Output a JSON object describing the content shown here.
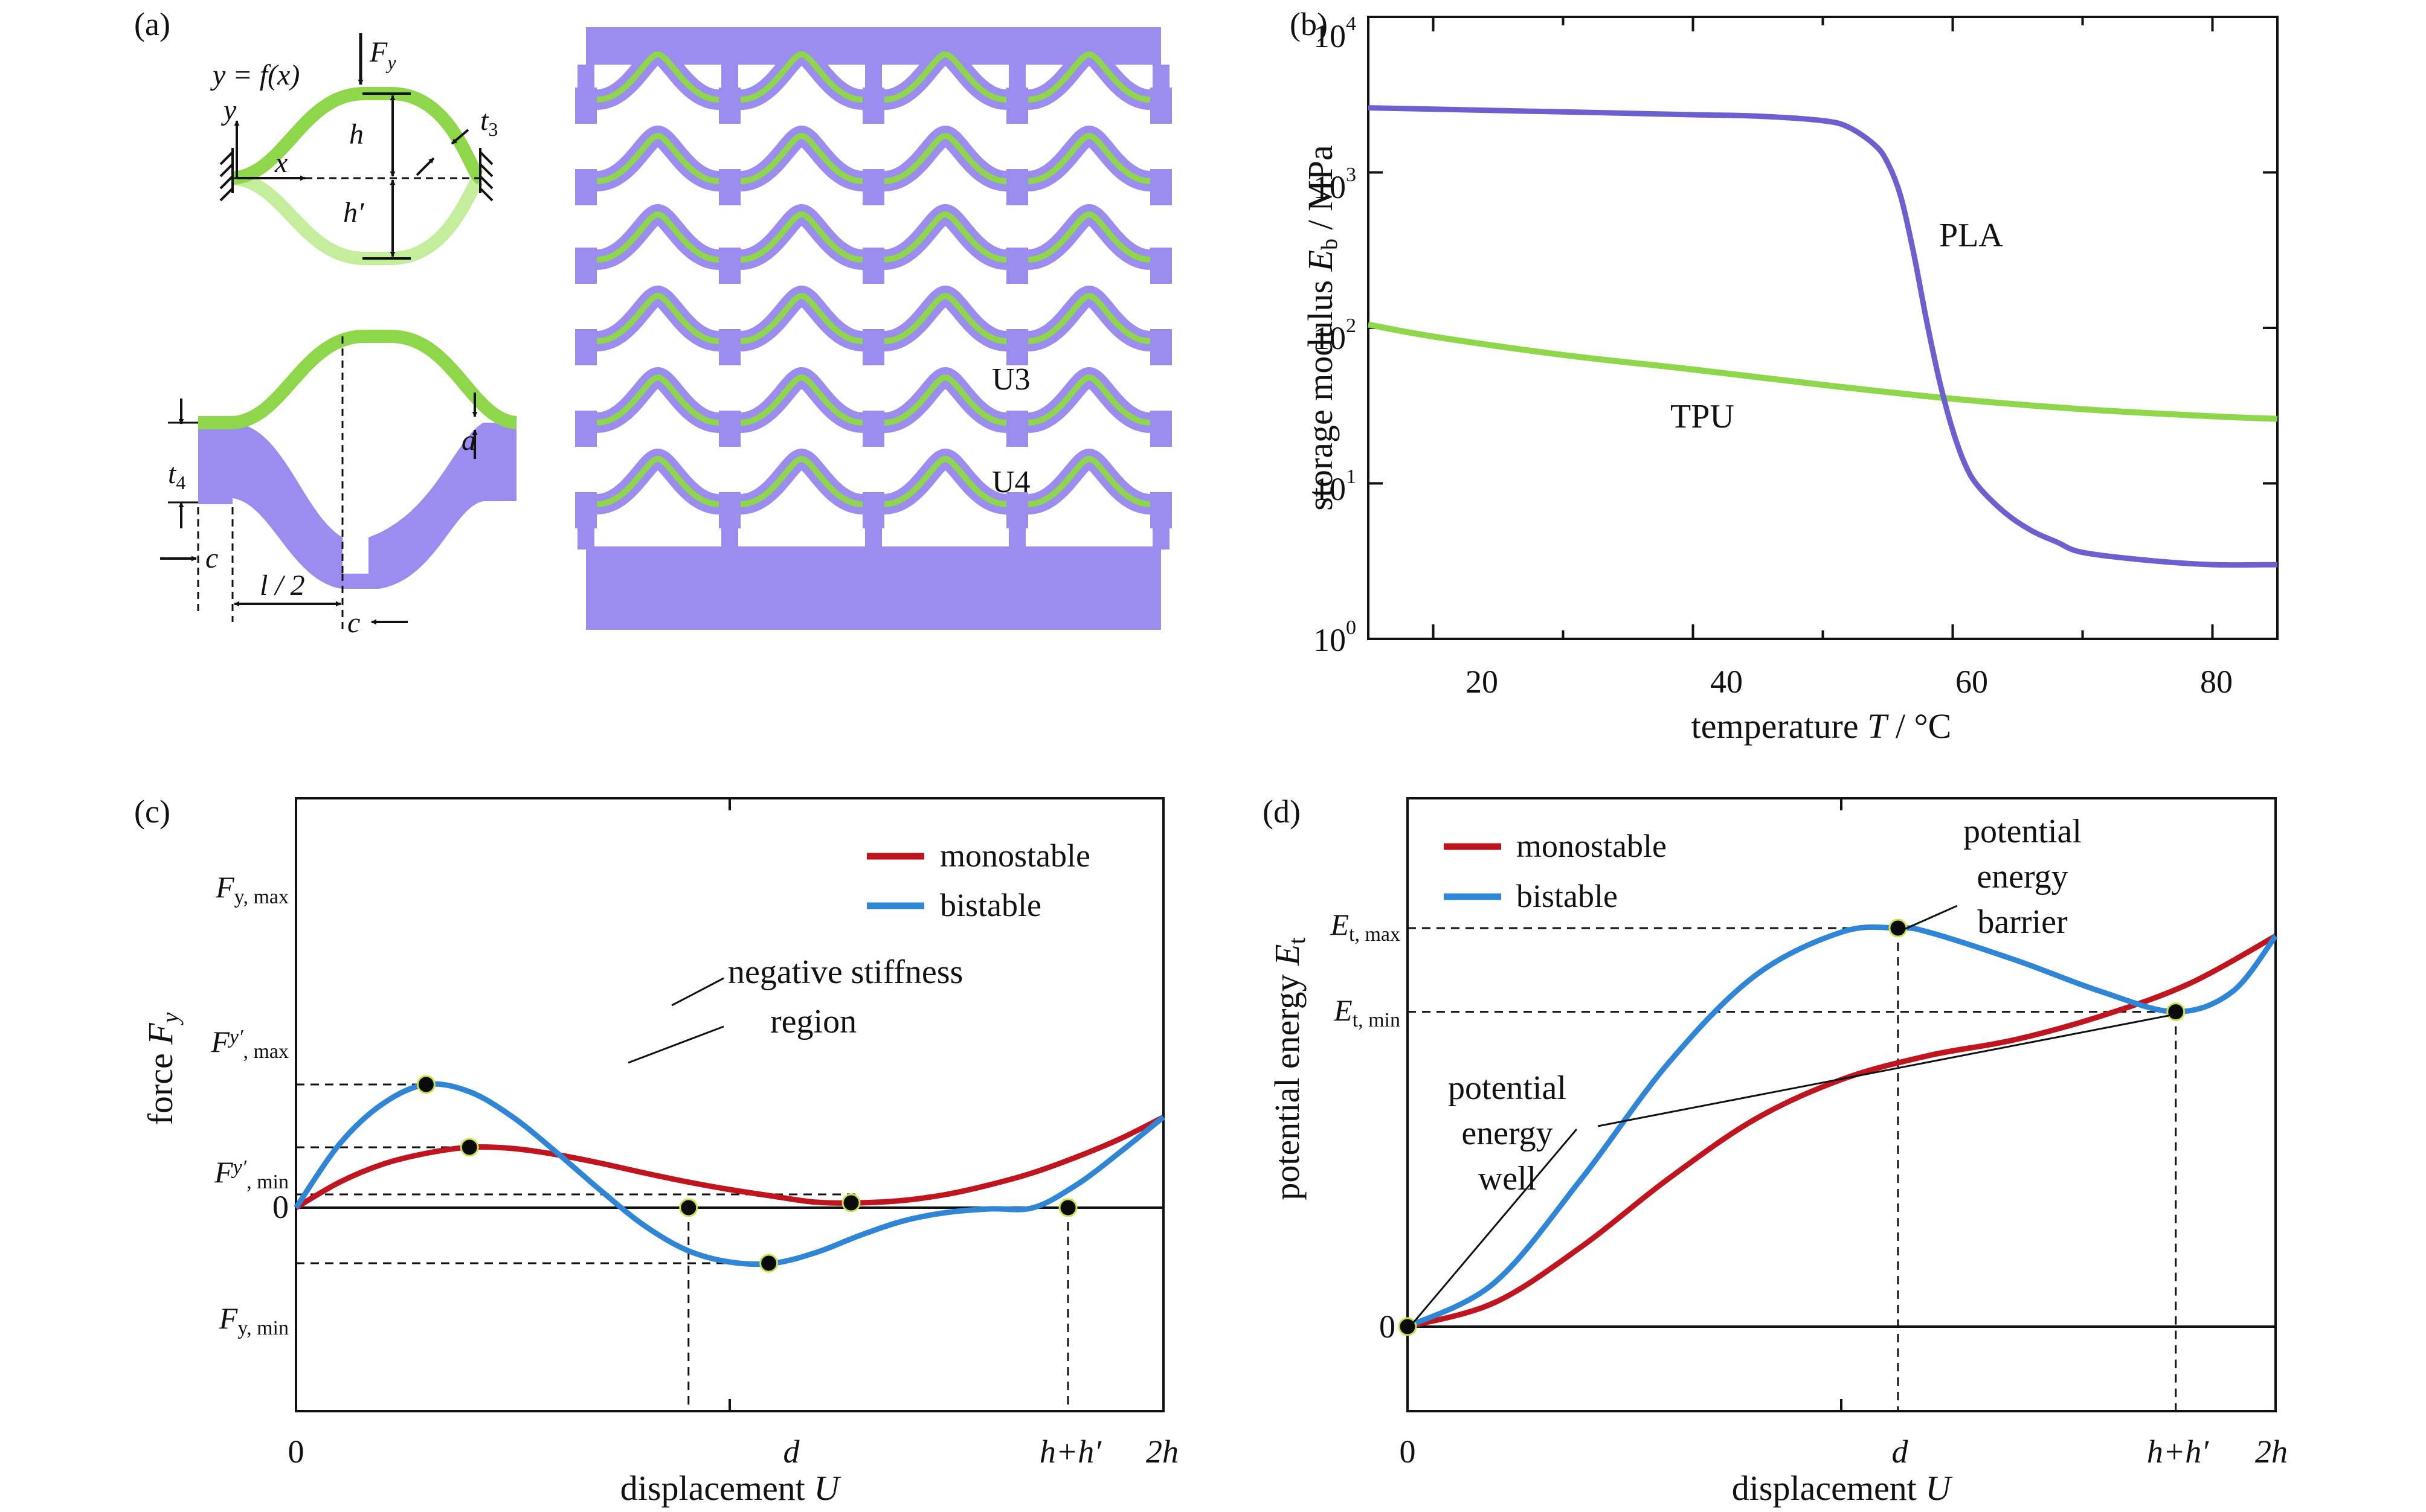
{
  "colors": {
    "pla": "#6d5fd0",
    "tpu": "#8ed64a",
    "body": "#9b8cf0",
    "monostable": "#c0141e",
    "bistable": "#2f86d6",
    "marker_fill": "#0b0b0b",
    "marker_edge": "#c9e34a"
  },
  "panel_a": {
    "label": "(a)",
    "eq": "y = f(x)",
    "force_main": "F",
    "force_sub": "y",
    "dim_h": "h",
    "dim_hp": "h′",
    "dim_t3_main": "t",
    "dim_t3_sub": "3",
    "dim_t4_main": "t",
    "dim_t4_sub": "4",
    "dim_a": "a",
    "dim_c1": "c",
    "dim_c2": "c",
    "dim_l2": "l / 2",
    "axis_x": "x",
    "axis_y": "y",
    "u3": "U3",
    "u4": "U4"
  },
  "panel_b": {
    "label": "(b)",
    "xlabel_pre": "temperature ",
    "xlabel_var": "T",
    "xlabel_post": " / °C",
    "ylabel_pre": "storage modulus ",
    "ylabel_var": "E",
    "ylabel_sub": "b",
    "ylabel_post": " / MPa",
    "xticks": [
      "20",
      "40",
      "60",
      "80"
    ],
    "ytick_base": "10",
    "yticks_exp": [
      "0",
      "1",
      "2",
      "3",
      "4"
    ],
    "series_pla": "PLA",
    "series_tpu": "TPU"
  },
  "panel_c": {
    "label": "(c)",
    "ylabel_pre": "force ",
    "ylabel_var": "F",
    "ylabel_sub": "y",
    "xlabel_pre": "displacement ",
    "xlabel_var": "U",
    "xticks": [
      "0",
      "d",
      "h+h′",
      "2h"
    ],
    "zero": "0",
    "l_fymax": "F",
    "l_fymax_sub": "y, max",
    "l_fypmax": "F",
    "l_fypmax_p": "y′",
    "l_fypmax_sub": ", max",
    "l_fypmin": "F",
    "l_fypmin_p": "y′",
    "l_fypmin_sub": ", min",
    "l_fymin": "F",
    "l_fymin_sub": "y, min",
    "legend_mono": "monostable",
    "legend_bi": "bistable",
    "annot_1": "negative stiffness",
    "annot_2": "region"
  },
  "panel_d": {
    "label": "(d)",
    "ylabel_pre": "potential energy ",
    "ylabel_var": "E",
    "ylabel_sub": "t",
    "xlabel_pre": "displacement ",
    "xlabel_var": "U",
    "xticks": [
      "0",
      "d",
      "h+h′",
      "2h"
    ],
    "zero": "0",
    "l_etmax": "E",
    "l_etmax_sub": "t, max",
    "l_etmin": "E",
    "l_etmin_sub": "t, min",
    "legend_mono": "monostable",
    "legend_bi": "bistable",
    "barrier_1": "potential",
    "barrier_2": "energy",
    "barrier_3": "barrier",
    "well_1": "potential",
    "well_2": "energy",
    "well_3": "well"
  },
  "chart_data": [
    {
      "panel": "b",
      "type": "line",
      "xlabel": "temperature T / °C",
      "ylabel": "storage modulus E_b / MPa",
      "xlim": [
        15,
        85
      ],
      "ylim": [
        1,
        10000
      ],
      "yscale": "log",
      "series": [
        {
          "name": "PLA",
          "x": [
            15,
            20,
            30,
            40,
            45,
            50,
            52,
            54,
            55,
            56,
            57,
            58,
            59,
            60,
            61,
            62,
            64,
            66,
            68,
            70,
            75,
            80,
            85
          ],
          "y": [
            2600,
            2550,
            2450,
            2350,
            2300,
            2150,
            1950,
            1500,
            1150,
            700,
            300,
            110,
            45,
            22,
            13,
            9.5,
            6.5,
            5.0,
            4.2,
            3.6,
            3.2,
            3.0,
            3.0
          ]
        },
        {
          "name": "TPU",
          "x": [
            15,
            20,
            30,
            40,
            50,
            60,
            70,
            80,
            85
          ],
          "y": [
            105,
            88,
            67,
            54,
            43,
            35,
            30,
            27,
            26
          ]
        }
      ]
    },
    {
      "panel": "c",
      "type": "line",
      "xlabel": "displacement U",
      "ylabel": "force F_y",
      "series": [
        {
          "name": "monostable",
          "x": [
            0,
            0.1,
            0.2,
            0.3,
            0.4,
            0.5,
            0.6,
            0.7,
            0.8,
            0.9,
            1.0,
            1.1,
            1.2,
            1.3,
            1.4,
            1.5,
            1.6,
            1.7,
            1.8,
            1.9,
            2.0
          ],
          "y": [
            0,
            0.42,
            0.72,
            0.9,
            1.0,
            0.98,
            0.88,
            0.74,
            0.58,
            0.43,
            0.3,
            0.19,
            0.09,
            0.08,
            0.12,
            0.22,
            0.38,
            0.58,
            0.84,
            1.14,
            1.5
          ]
        },
        {
          "name": "bistable",
          "x": [
            0,
            0.1,
            0.2,
            0.3,
            0.4,
            0.5,
            0.6,
            0.7,
            0.8,
            0.9,
            1.0,
            1.1,
            1.2,
            1.3,
            1.4,
            1.5,
            1.6,
            1.7,
            1.8,
            1.9,
            2.0
          ],
          "y": [
            0,
            1.05,
            1.72,
            2.04,
            1.92,
            1.5,
            0.92,
            0.3,
            -0.28,
            -0.7,
            -0.9,
            -0.92,
            -0.74,
            -0.46,
            -0.22,
            -0.08,
            -0.02,
            0.0,
            0.38,
            0.92,
            1.5
          ]
        }
      ]
    },
    {
      "panel": "d",
      "type": "line",
      "xlabel": "displacement U",
      "ylabel": "potential energy E_t",
      "series": [
        {
          "name": "monostable",
          "x": [
            0,
            0.2,
            0.4,
            0.6,
            0.8,
            1.0,
            1.2,
            1.4,
            1.6,
            1.8,
            2.0
          ],
          "y": [
            0,
            0.06,
            0.2,
            0.37,
            0.52,
            0.62,
            0.68,
            0.72,
            0.78,
            0.86,
            0.98
          ]
        },
        {
          "name": "bistable",
          "x": [
            0,
            0.2,
            0.4,
            0.6,
            0.8,
            1.0,
            1.13,
            1.2,
            1.4,
            1.6,
            1.77,
            1.9,
            2.0
          ],
          "y": [
            0,
            0.11,
            0.37,
            0.66,
            0.88,
            0.99,
            1.0,
            0.99,
            0.92,
            0.84,
            0.79,
            0.84,
            0.98
          ]
        }
      ]
    }
  ]
}
